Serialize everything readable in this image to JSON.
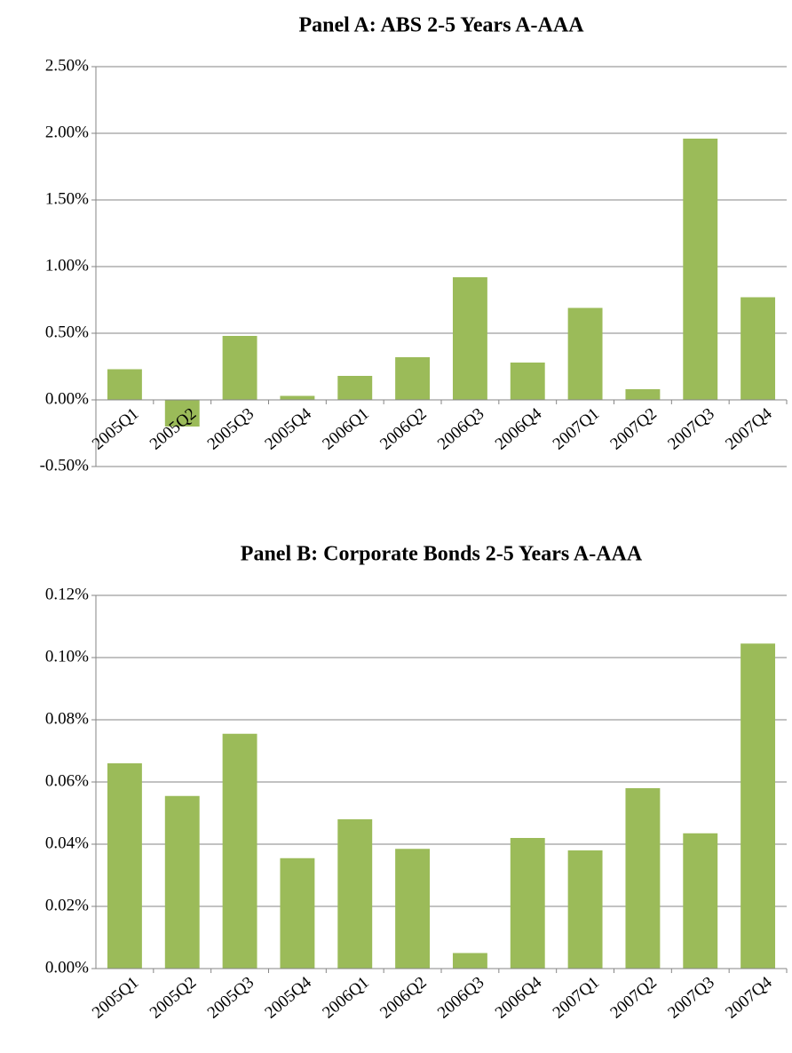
{
  "chart_data": [
    {
      "type": "bar",
      "title": "Panel A: ABS 2-5 Years A-AAA",
      "categories": [
        "2005Q1",
        "2005Q2",
        "2005Q3",
        "2005Q4",
        "2006Q1",
        "2006Q2",
        "2006Q3",
        "2006Q4",
        "2007Q1",
        "2007Q2",
        "2007Q3",
        "2007Q4"
      ],
      "values": [
        0.23,
        -0.2,
        0.48,
        0.03,
        0.18,
        0.32,
        0.92,
        0.28,
        0.69,
        0.08,
        1.96,
        0.77
      ],
      "color": "#9bbb59",
      "ylim": [
        -0.5,
        2.5
      ],
      "yticks": [
        {
          "value": -0.5,
          "label": "-0.50%"
        },
        {
          "value": 0,
          "label": "0.00%"
        },
        {
          "value": 0.5,
          "label": "0.50%"
        },
        {
          "value": 1,
          "label": "1.00%"
        },
        {
          "value": 1.5,
          "label": "1.50%"
        },
        {
          "value": 2,
          "label": "2.00%"
        },
        {
          "value": 2.5,
          "label": "2.50%"
        }
      ],
      "grid": true
    },
    {
      "type": "bar",
      "title": "Panel B: Corporate Bonds 2-5 Years A-AAA",
      "categories": [
        "2005Q1",
        "2005Q2",
        "2005Q3",
        "2005Q4",
        "2006Q1",
        "2006Q2",
        "2006Q3",
        "2006Q4",
        "2007Q1",
        "2007Q2",
        "2007Q3",
        "2007Q4"
      ],
      "values": [
        0.066,
        0.0555,
        0.0755,
        0.0355,
        0.048,
        0.0385,
        0.005,
        0.042,
        0.038,
        0.058,
        0.0435,
        0.1045
      ],
      "color": "#9bbb59",
      "ylim": [
        0,
        0.12
      ],
      "yticks": [
        {
          "value": 0,
          "label": "0.00%"
        },
        {
          "value": 0.02,
          "label": "0.02%"
        },
        {
          "value": 0.04,
          "label": "0.04%"
        },
        {
          "value": 0.06,
          "label": "0.06%"
        },
        {
          "value": 0.08,
          "label": "0.08%"
        },
        {
          "value": 0.1,
          "label": "0.10%"
        },
        {
          "value": 0.12,
          "label": "0.12%"
        }
      ],
      "grid": true
    }
  ]
}
